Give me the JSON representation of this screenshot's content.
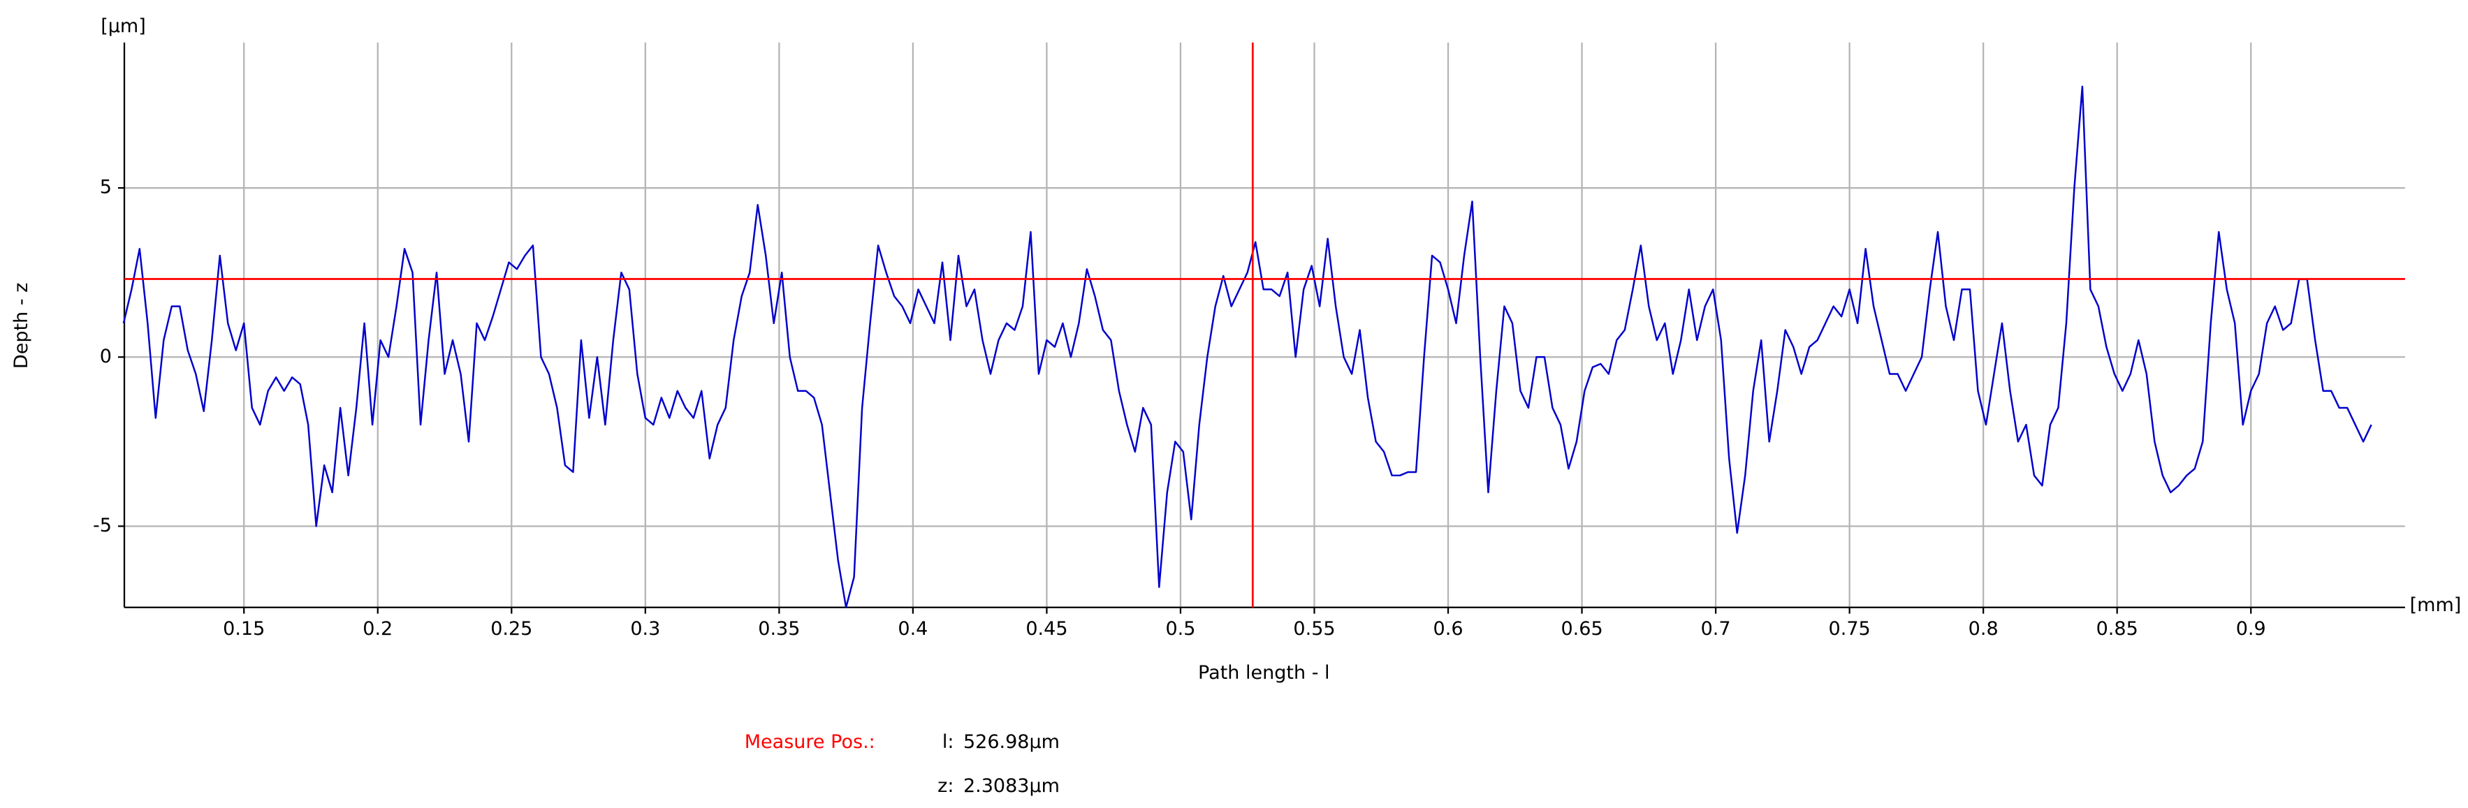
{
  "chart_data": {
    "type": "line",
    "xlabel": "Path length - l",
    "ylabel": "Depth - z",
    "xunit": "[mm]",
    "yunit": "[µm]",
    "xlim": [
      0.1053,
      0.9576
    ],
    "ylim": [
      -7.4,
      9.3
    ],
    "xticks": [
      0.15,
      0.2,
      0.25,
      0.3,
      0.35,
      0.4,
      0.45,
      0.5,
      0.55,
      0.6,
      0.65,
      0.7,
      0.75,
      0.8,
      0.85,
      0.9
    ],
    "yticks": [
      -5,
      0,
      5
    ],
    "grid": true,
    "color": "#0000cc",
    "x": [
      0.105,
      0.108,
      0.111,
      0.114,
      0.117,
      0.12,
      0.123,
      0.126,
      0.129,
      0.132,
      0.135,
      0.138,
      0.141,
      0.144,
      0.147,
      0.15,
      0.153,
      0.156,
      0.159,
      0.162,
      0.165,
      0.168,
      0.171,
      0.174,
      0.177,
      0.18,
      0.183,
      0.186,
      0.189,
      0.192,
      0.195,
      0.198,
      0.201,
      0.204,
      0.207,
      0.21,
      0.213,
      0.216,
      0.219,
      0.222,
      0.225,
      0.228,
      0.231,
      0.234,
      0.237,
      0.24,
      0.243,
      0.246,
      0.249,
      0.252,
      0.255,
      0.258,
      0.261,
      0.264,
      0.267,
      0.27,
      0.273,
      0.276,
      0.279,
      0.282,
      0.285,
      0.288,
      0.291,
      0.294,
      0.297,
      0.3,
      0.303,
      0.306,
      0.309,
      0.312,
      0.315,
      0.318,
      0.321,
      0.324,
      0.327,
      0.33,
      0.333,
      0.336,
      0.339,
      0.342,
      0.345,
      0.348,
      0.351,
      0.354,
      0.357,
      0.36,
      0.363,
      0.366,
      0.369,
      0.372,
      0.375,
      0.378,
      0.381,
      0.384,
      0.387,
      0.39,
      0.393,
      0.396,
      0.399,
      0.402,
      0.405,
      0.408,
      0.411,
      0.414,
      0.417,
      0.42,
      0.423,
      0.426,
      0.429,
      0.432,
      0.435,
      0.438,
      0.441,
      0.444,
      0.447,
      0.45,
      0.453,
      0.456,
      0.459,
      0.462,
      0.465,
      0.468,
      0.471,
      0.474,
      0.477,
      0.48,
      0.483,
      0.486,
      0.489,
      0.492,
      0.495,
      0.498,
      0.501,
      0.504,
      0.507,
      0.51,
      0.513,
      0.516,
      0.519,
      0.522,
      0.525,
      0.528,
      0.531,
      0.534,
      0.537,
      0.54,
      0.543,
      0.546,
      0.549,
      0.552,
      0.555,
      0.558,
      0.561,
      0.564,
      0.567,
      0.57,
      0.573,
      0.576,
      0.579,
      0.582,
      0.585,
      0.588,
      0.591,
      0.594,
      0.597,
      0.6,
      0.603,
      0.606,
      0.609,
      0.612,
      0.615,
      0.618,
      0.621,
      0.624,
      0.627,
      0.63,
      0.633,
      0.636,
      0.639,
      0.642,
      0.645,
      0.648,
      0.651,
      0.654,
      0.657,
      0.66,
      0.663,
      0.666,
      0.669,
      0.672,
      0.675,
      0.678,
      0.681,
      0.684,
      0.687,
      0.69,
      0.693,
      0.696,
      0.699,
      0.702,
      0.705,
      0.708,
      0.711,
      0.714,
      0.717,
      0.72,
      0.723,
      0.726,
      0.729,
      0.732,
      0.735,
      0.738,
      0.741,
      0.744,
      0.747,
      0.75,
      0.753,
      0.756,
      0.759,
      0.762,
      0.765,
      0.768,
      0.771,
      0.774,
      0.777,
      0.78,
      0.783,
      0.786,
      0.789,
      0.792,
      0.795,
      0.798,
      0.801,
      0.804,
      0.807,
      0.81,
      0.813,
      0.816,
      0.819,
      0.822,
      0.825,
      0.828,
      0.831,
      0.834,
      0.837,
      0.84,
      0.843,
      0.846,
      0.849,
      0.852,
      0.855,
      0.858,
      0.861,
      0.864,
      0.867,
      0.87,
      0.873,
      0.876,
      0.879,
      0.882,
      0.885,
      0.888,
      0.891,
      0.894,
      0.897,
      0.9,
      0.903,
      0.906,
      0.909,
      0.912,
      0.915,
      0.918,
      0.921,
      0.924,
      0.927,
      0.93,
      0.933,
      0.936,
      0.939,
      0.942,
      0.945
    ],
    "values": [
      1.0,
      2.0,
      3.2,
      1.0,
      -1.8,
      0.5,
      1.5,
      1.5,
      0.2,
      -0.5,
      -1.6,
      0.5,
      3.0,
      1.0,
      0.2,
      1.0,
      -1.5,
      -2.0,
      -1.0,
      -0.6,
      -1.0,
      -0.6,
      -0.8,
      -2.0,
      -5.0,
      -3.2,
      -4.0,
      -1.5,
      -3.5,
      -1.5,
      1.0,
      -2.0,
      0.5,
      0.0,
      1.5,
      3.2,
      2.5,
      -2.0,
      0.5,
      2.5,
      -0.5,
      0.5,
      -0.5,
      -2.5,
      1.0,
      0.5,
      1.2,
      2.0,
      2.8,
      2.6,
      3.0,
      3.3,
      0.0,
      -0.5,
      -1.5,
      -3.2,
      -3.4,
      0.5,
      -1.8,
      0.0,
      -2.0,
      0.5,
      2.5,
      2.0,
      -0.5,
      -1.8,
      -2.0,
      -1.2,
      -1.8,
      -1.0,
      -1.5,
      -1.8,
      -1.0,
      -3.0,
      -2.0,
      -1.5,
      0.5,
      1.8,
      2.5,
      4.5,
      3.0,
      1.0,
      2.5,
      0.0,
      -1.0,
      -1.0,
      -1.2,
      -2.0,
      -4.0,
      -6.0,
      -7.4,
      -6.5,
      -1.5,
      1.0,
      3.3,
      2.5,
      1.8,
      1.5,
      1.0,
      2.0,
      1.5,
      1.0,
      2.8,
      0.5,
      3.0,
      1.5,
      2.0,
      0.5,
      -0.5,
      0.5,
      1.0,
      0.8,
      1.5,
      3.7,
      -0.5,
      0.5,
      0.3,
      1.0,
      0.0,
      1.0,
      2.6,
      1.8,
      0.8,
      0.5,
      -1.0,
      -2.0,
      -2.8,
      -1.5,
      -2.0,
      -6.8,
      -4.0,
      -2.5,
      -2.8,
      -4.8,
      -2.0,
      0.0,
      1.5,
      2.4,
      1.5,
      2.0,
      2.5,
      3.4,
      2.0,
      2.0,
      1.8,
      2.5,
      0.0,
      2.0,
      2.7,
      1.5,
      3.5,
      1.5,
      0.0,
      -0.5,
      0.8,
      -1.2,
      -2.5,
      -2.8,
      -3.5,
      -3.5,
      -3.4,
      -3.4,
      0.0,
      3.0,
      2.8,
      2.0,
      1.0,
      3.0,
      4.6,
      0.0,
      -4.0,
      -1.0,
      1.5,
      1.0,
      -1.0,
      -1.5,
      0.0,
      0.0,
      -1.5,
      -2.0,
      -3.3,
      -2.5,
      -1.0,
      -0.3,
      -0.2,
      -0.5,
      0.5,
      0.8,
      2.0,
      3.3,
      1.5,
      0.5,
      1.0,
      -0.5,
      0.5,
      2.0,
      0.5,
      1.5,
      2.0,
      0.5,
      -3.0,
      -5.2,
      -3.5,
      -1.0,
      0.5,
      -2.5,
      -1.0,
      0.8,
      0.3,
      -0.5,
      0.3,
      0.5,
      1.0,
      1.5,
      1.2,
      2.0,
      1.0,
      3.2,
      1.5,
      0.5,
      -0.5,
      -0.5,
      -1.0,
      -0.5,
      0.0,
      2.0,
      3.7,
      1.5,
      0.5,
      2.0,
      2.0,
      -1.0,
      -2.0,
      -0.5,
      1.0,
      -1.0,
      -2.5,
      -2.0,
      -3.5,
      -3.8,
      -2.0,
      -1.5,
      1.0,
      5.0,
      8.0,
      2.0,
      1.5,
      0.3,
      -0.5,
      -1.0,
      -0.5,
      0.5,
      -0.5,
      -2.5,
      -3.5,
      -4.0,
      -3.8,
      -3.5,
      -3.3,
      -2.5,
      1.0,
      3.7,
      2.0,
      1.0,
      -2.0,
      -1.0,
      -0.5,
      1.0,
      1.5,
      0.8,
      1.0,
      2.3,
      2.3,
      0.5,
      -1.0,
      -1.0,
      -1.5,
      -1.5,
      -2.0,
      -2.5,
      -2.0
    ],
    "cursor": {
      "x": 0.52698,
      "y": 2.3083,
      "color": "#ff0000"
    },
    "measure": {
      "title": "Measure Pos.:",
      "l_label": "l:",
      "l_value": "526.98µm",
      "z_label": "z:",
      "z_value": "2.3083µm"
    }
  }
}
